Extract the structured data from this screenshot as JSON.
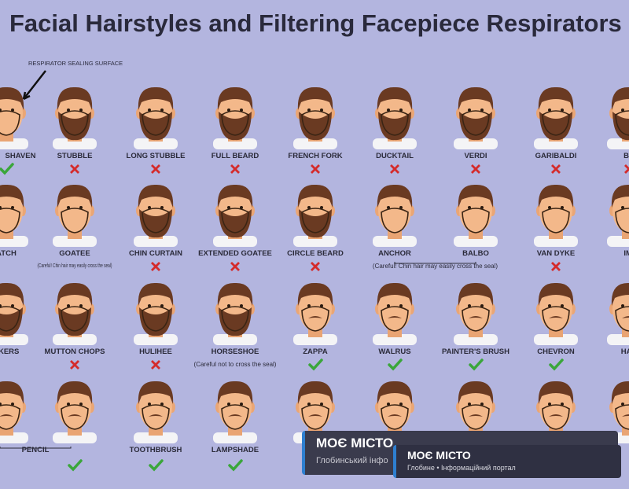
{
  "header": {
    "title": "Facial Hairstyles and Filtering Facepiece Respirators",
    "annotation": "RESPIRATOR SEALING SURFACE"
  },
  "rows": [
    [
      {
        "label": "SHAVEN",
        "approved": true
      },
      {
        "label": "STUBBLE",
        "approved": false
      },
      {
        "label": "LONG STUBBLE",
        "approved": false
      },
      {
        "label": "FULL BEARD",
        "approved": false
      },
      {
        "label": "FRENCH FORK",
        "approved": false
      },
      {
        "label": "DUCKTAIL",
        "approved": false
      },
      {
        "label": "VERDI",
        "approved": false
      },
      {
        "label": "GARIBALDI",
        "approved": false
      },
      {
        "label": "BA",
        "approved": false
      }
    ],
    [
      {
        "label": "ATCH"
      },
      {
        "label": "GOATEE",
        "note": "(Careful! Chin hair may easily cross the seal)"
      },
      {
        "label": "CHIN CURTAIN",
        "approved": false
      },
      {
        "label": "EXTENDED GOATEE",
        "approved": false
      },
      {
        "label": "CIRCLE BEARD",
        "approved": false
      },
      {
        "label": "ANCHOR"
      },
      {
        "label": "BALBO",
        "note": "(Careful! Chin hair may easily cross the seal)"
      },
      {
        "label": "VAN DYKE",
        "approved": false
      },
      {
        "label": "IMI"
      }
    ],
    [
      {
        "label": "SKERS"
      },
      {
        "label": "MUTTON CHOPS",
        "approved": false
      },
      {
        "label": "HULIHEE",
        "approved": false
      },
      {
        "label": "HORSESHOE",
        "note": "(Careful not to cross the seal)"
      },
      {
        "label": "ZAPPA",
        "approved": true
      },
      {
        "label": "WALRUS",
        "approved": true
      },
      {
        "label": "PAINTER'S BRUSH",
        "approved": true
      },
      {
        "label": "CHEVRON",
        "approved": true
      },
      {
        "label": "HAN"
      }
    ],
    [
      {
        "label": "PENCIL",
        "approved": true
      },
      {
        "label": "TOOTHBRUSH",
        "approved": true
      },
      {
        "label": "LAMPSHADE",
        "approved": true
      }
    ]
  ],
  "watermarks": [
    {
      "brand": "МОЄ МІСТО",
      "subtitle": "Глобинський інфо"
    },
    {
      "brand": "МОЄ МІСТО",
      "subtitle": "Глобине • Інформаційний портал"
    }
  ]
}
